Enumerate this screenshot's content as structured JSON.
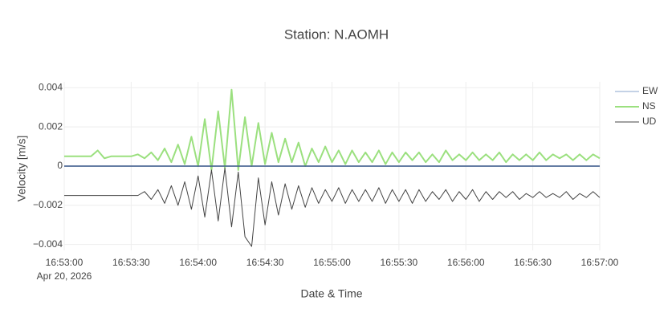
{
  "chart_data": {
    "type": "line",
    "title": "Station: N.AOMH",
    "x_label": "Date & Time",
    "y_label": "Velocity [m/s]",
    "x_date_label": "Apr 20, 2026",
    "x": [
      "16:53:00",
      "16:53:03",
      "16:53:06",
      "16:53:09",
      "16:53:12",
      "16:53:15",
      "16:53:18",
      "16:53:21",
      "16:53:24",
      "16:53:27",
      "16:53:30",
      "16:53:33",
      "16:53:36",
      "16:53:39",
      "16:53:42",
      "16:53:45",
      "16:53:48",
      "16:53:51",
      "16:53:54",
      "16:53:57",
      "16:54:00",
      "16:54:03",
      "16:54:06",
      "16:54:09",
      "16:54:12",
      "16:54:15",
      "16:54:18",
      "16:54:21",
      "16:54:24",
      "16:54:27",
      "16:54:30",
      "16:54:33",
      "16:54:36",
      "16:54:39",
      "16:54:42",
      "16:54:45",
      "16:54:48",
      "16:54:51",
      "16:54:54",
      "16:54:57",
      "16:55:00",
      "16:55:03",
      "16:55:06",
      "16:55:09",
      "16:55:12",
      "16:55:15",
      "16:55:18",
      "16:55:21",
      "16:55:24",
      "16:55:27",
      "16:55:30",
      "16:55:33",
      "16:55:36",
      "16:55:39",
      "16:55:42",
      "16:55:45",
      "16:55:48",
      "16:55:51",
      "16:55:54",
      "16:55:57",
      "16:56:00",
      "16:56:03",
      "16:56:06",
      "16:56:09",
      "16:56:12",
      "16:56:15",
      "16:56:18",
      "16:56:21",
      "16:56:24",
      "16:56:27",
      "16:56:30",
      "16:56:33",
      "16:56:36",
      "16:56:39",
      "16:56:42",
      "16:56:45",
      "16:56:48",
      "16:56:51",
      "16:56:54",
      "16:56:57",
      "16:57:00"
    ],
    "series": [
      {
        "name": "EW",
        "color": "#b0c4de",
        "width": 1.5,
        "values": [
          0,
          0,
          0,
          0,
          0,
          0,
          0,
          0,
          0,
          0,
          0,
          0,
          0,
          0,
          0,
          0,
          0,
          0,
          0,
          0,
          0,
          0,
          0,
          0,
          0,
          0,
          0,
          0,
          0,
          0,
          0,
          0,
          0,
          0,
          0,
          0,
          0,
          0,
          0,
          0,
          0,
          0,
          0,
          0,
          0,
          0,
          0,
          0,
          0,
          0,
          0,
          0,
          0,
          0,
          0,
          0,
          0,
          0,
          0,
          0,
          0,
          0,
          0,
          0,
          0,
          0,
          0,
          0,
          0,
          0,
          0,
          0,
          0,
          0,
          0,
          0,
          0,
          0,
          0,
          0,
          0
        ]
      },
      {
        "name": "NS",
        "color": "#9be07f",
        "width": 2,
        "values": [
          0.0005,
          0.0005,
          0.0005,
          0.0005,
          0.0005,
          0.0008,
          0.0004,
          0.0005,
          0.0005,
          0.0005,
          0.0005,
          0.0006,
          0.0004,
          0.0007,
          0.0003,
          0.0009,
          0.0002,
          0.0011,
          0.0001,
          0.0015,
          0.0,
          0.0024,
          -0.0002,
          0.0028,
          -0.0001,
          0.0039,
          -0.0002,
          0.0025,
          0.0,
          0.0022,
          0.0001,
          0.0017,
          0.0002,
          0.0014,
          0.0002,
          0.0012,
          0.0,
          0.0009,
          0.0002,
          0.001,
          0.0002,
          0.0008,
          0.0001,
          0.0008,
          0.0002,
          0.0007,
          0.0002,
          0.0008,
          0.0001,
          0.0007,
          0.0002,
          0.0007,
          0.0003,
          0.0007,
          0.0002,
          0.0006,
          0.0002,
          0.0008,
          0.0003,
          0.0006,
          0.0003,
          0.0007,
          0.0003,
          0.0006,
          0.0003,
          0.0007,
          0.0002,
          0.0006,
          0.0003,
          0.0006,
          0.0003,
          0.0007,
          0.0003,
          0.0006,
          0.0004,
          0.0006,
          0.0003,
          0.0006,
          0.0003,
          0.0006,
          0.0004
        ]
      },
      {
        "name": "UD",
        "color": "#444444",
        "width": 1,
        "values": [
          -0.0015,
          -0.0015,
          -0.0015,
          -0.0015,
          -0.0015,
          -0.0015,
          -0.0015,
          -0.0015,
          -0.0015,
          -0.0015,
          -0.0015,
          -0.0015,
          -0.0013,
          -0.0017,
          -0.0012,
          -0.0019,
          -0.001,
          -0.002,
          -0.0008,
          -0.0022,
          -0.0005,
          -0.0026,
          -0.0002,
          -0.0028,
          -0.0001,
          -0.0031,
          -0.0003,
          -0.0036,
          -0.0041,
          -0.0006,
          -0.003,
          -0.0008,
          -0.0025,
          -0.0009,
          -0.0022,
          -0.001,
          -0.0021,
          -0.0011,
          -0.0019,
          -0.0012,
          -0.0018,
          -0.0011,
          -0.0019,
          -0.0012,
          -0.0018,
          -0.0012,
          -0.0018,
          -0.0011,
          -0.0019,
          -0.0012,
          -0.0018,
          -0.0012,
          -0.0019,
          -0.0012,
          -0.0018,
          -0.0013,
          -0.0017,
          -0.0012,
          -0.0018,
          -0.0013,
          -0.0017,
          -0.0012,
          -0.0018,
          -0.0013,
          -0.0017,
          -0.0013,
          -0.0016,
          -0.0013,
          -0.0017,
          -0.0014,
          -0.0016,
          -0.0013,
          -0.0016,
          -0.0014,
          -0.0016,
          -0.0013,
          -0.0017,
          -0.0014,
          -0.0016,
          -0.0013,
          -0.0016
        ]
      }
    ],
    "xlim": [
      "16:53:00",
      "16:57:00"
    ],
    "xticks": [
      "16:53:00",
      "16:53:30",
      "16:54:00",
      "16:54:30",
      "16:55:00",
      "16:55:30",
      "16:56:00",
      "16:56:30",
      "16:57:00"
    ],
    "ylim": [
      -0.0043,
      0.0043
    ],
    "yticks": [
      {
        "value": -0.004,
        "label": "−0.004"
      },
      {
        "value": -0.002,
        "label": "−0.002"
      },
      0,
      0.002,
      0.004
    ],
    "grid": true,
    "legend": "top-right"
  }
}
